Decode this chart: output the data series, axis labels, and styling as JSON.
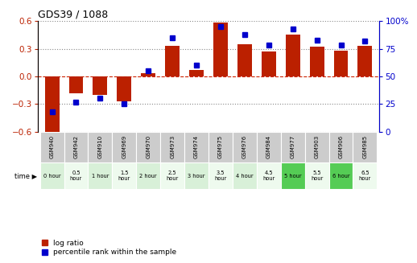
{
  "title": "GDS39 / 1088",
  "samples": [
    "GSM940",
    "GSM942",
    "GSM910",
    "GSM969",
    "GSM970",
    "GSM973",
    "GSM974",
    "GSM975",
    "GSM976",
    "GSM984",
    "GSM977",
    "GSM903",
    "GSM906",
    "GSM985"
  ],
  "time_labels": [
    "0 hour",
    "0.5\nhour",
    "1 hour",
    "1.5\nhour",
    "2 hour",
    "2.5\nhour",
    "3 hour",
    "3.5\nhour",
    "4 hour",
    "4.5\nhour",
    "5 hour",
    "5.5\nhour",
    "6 hour",
    "6.5\nhour"
  ],
  "log_ratio": [
    -0.63,
    -0.18,
    -0.2,
    -0.27,
    0.03,
    0.33,
    0.07,
    0.58,
    0.35,
    0.27,
    0.45,
    0.32,
    0.28,
    0.33
  ],
  "percentile": [
    18,
    27,
    30,
    25,
    55,
    85,
    60,
    95,
    88,
    78,
    93,
    83,
    78,
    82
  ],
  "bar_color": "#bb2000",
  "dot_color": "#0000cc",
  "left_ylim": [
    -0.6,
    0.6
  ],
  "right_ylim": [
    0,
    100
  ],
  "left_yticks": [
    -0.6,
    -0.3,
    0,
    0.3,
    0.6
  ],
  "right_yticks": [
    0,
    25,
    50,
    75,
    100
  ],
  "dotted_line_color": "#888888",
  "red_zero_color": "#cc2200",
  "sample_bg": "#cccccc",
  "time_colors": [
    "#d8f0d8",
    "#eefaee",
    "#d8f0d8",
    "#eefaee",
    "#d8f0d8",
    "#eefaee",
    "#d8f0d8",
    "#eefaee",
    "#d8f0d8",
    "#eefaee",
    "#55cc55",
    "#eefaee",
    "#55cc55",
    "#eefaee"
  ],
  "legend_red_label": "log ratio",
  "legend_blue_label": "percentile rank within the sample"
}
